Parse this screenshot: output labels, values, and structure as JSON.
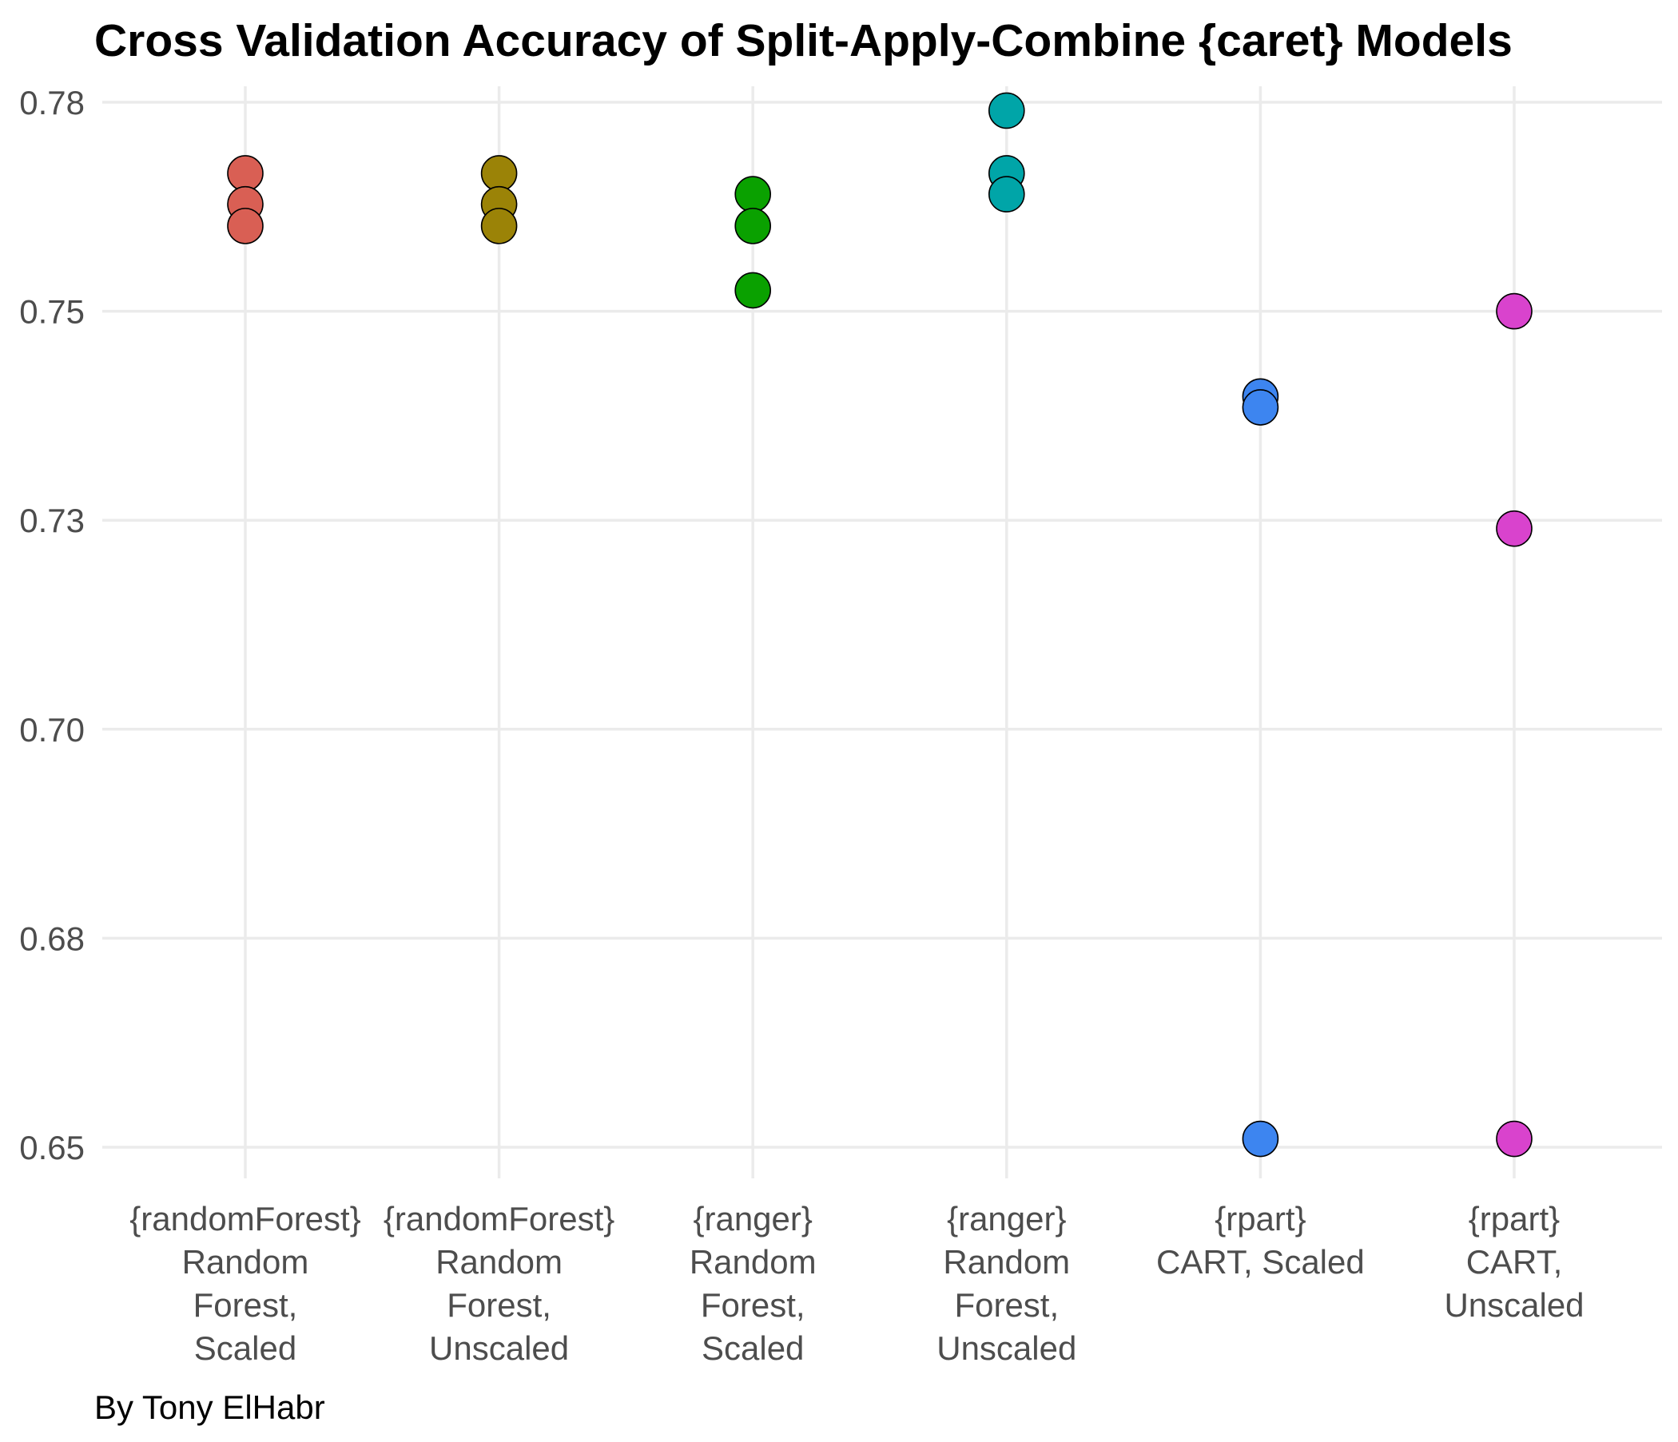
{
  "chart_data": {
    "type": "scatter",
    "title": "Cross Validation Accuracy of Split-Apply-Combine {caret} Models",
    "caption": "By Tony ElHabr",
    "xlabel": "",
    "ylabel": "",
    "ylim": [
      0.65,
      0.78
    ],
    "y_ticks": [
      0.65,
      0.675,
      0.7,
      0.725,
      0.75,
      0.775
    ],
    "y_tick_labels": [
      "0.65",
      "0.68",
      "0.70",
      "0.73",
      "0.75",
      "0.78"
    ],
    "grid": true,
    "legend": "none",
    "categories": [
      "{randomForest} Random Forest, Scaled",
      "{randomForest} Random Forest, Unscaled",
      "{ranger} Random Forest, Scaled",
      "{ranger} Random Forest, Unscaled",
      "{rpart} CART, Scaled",
      "{rpart} CART, Unscaled"
    ],
    "category_label_lines": [
      [
        "{randomForest}",
        "Random",
        "Forest,",
        "Scaled"
      ],
      [
        "{randomForest}",
        "Random",
        "Forest,",
        "Unscaled"
      ],
      [
        "{ranger}",
        "Random",
        "Forest,",
        "Scaled"
      ],
      [
        "{ranger}",
        "Random",
        "Forest,",
        "Unscaled"
      ],
      [
        "{rpart}",
        "CART, Scaled"
      ],
      [
        "{rpart}",
        "CART,",
        "Unscaled"
      ]
    ],
    "series": [
      {
        "values": [
          0.7665,
          0.7628,
          0.7602
        ],
        "color": "#d95f54"
      },
      {
        "values": [
          0.7665,
          0.7628,
          0.7602
        ],
        "color": "#9b8307"
      },
      {
        "values": [
          0.764,
          0.7602,
          0.7525
        ],
        "color": "#0aa100"
      },
      {
        "values": [
          0.774,
          0.7665,
          0.764
        ],
        "color": "#00a5a8"
      },
      {
        "values": [
          0.7398,
          0.7385,
          0.651
        ],
        "color": "#3d85f0"
      },
      {
        "values": [
          0.75,
          0.724,
          0.651
        ],
        "color": "#d943cd"
      }
    ]
  }
}
